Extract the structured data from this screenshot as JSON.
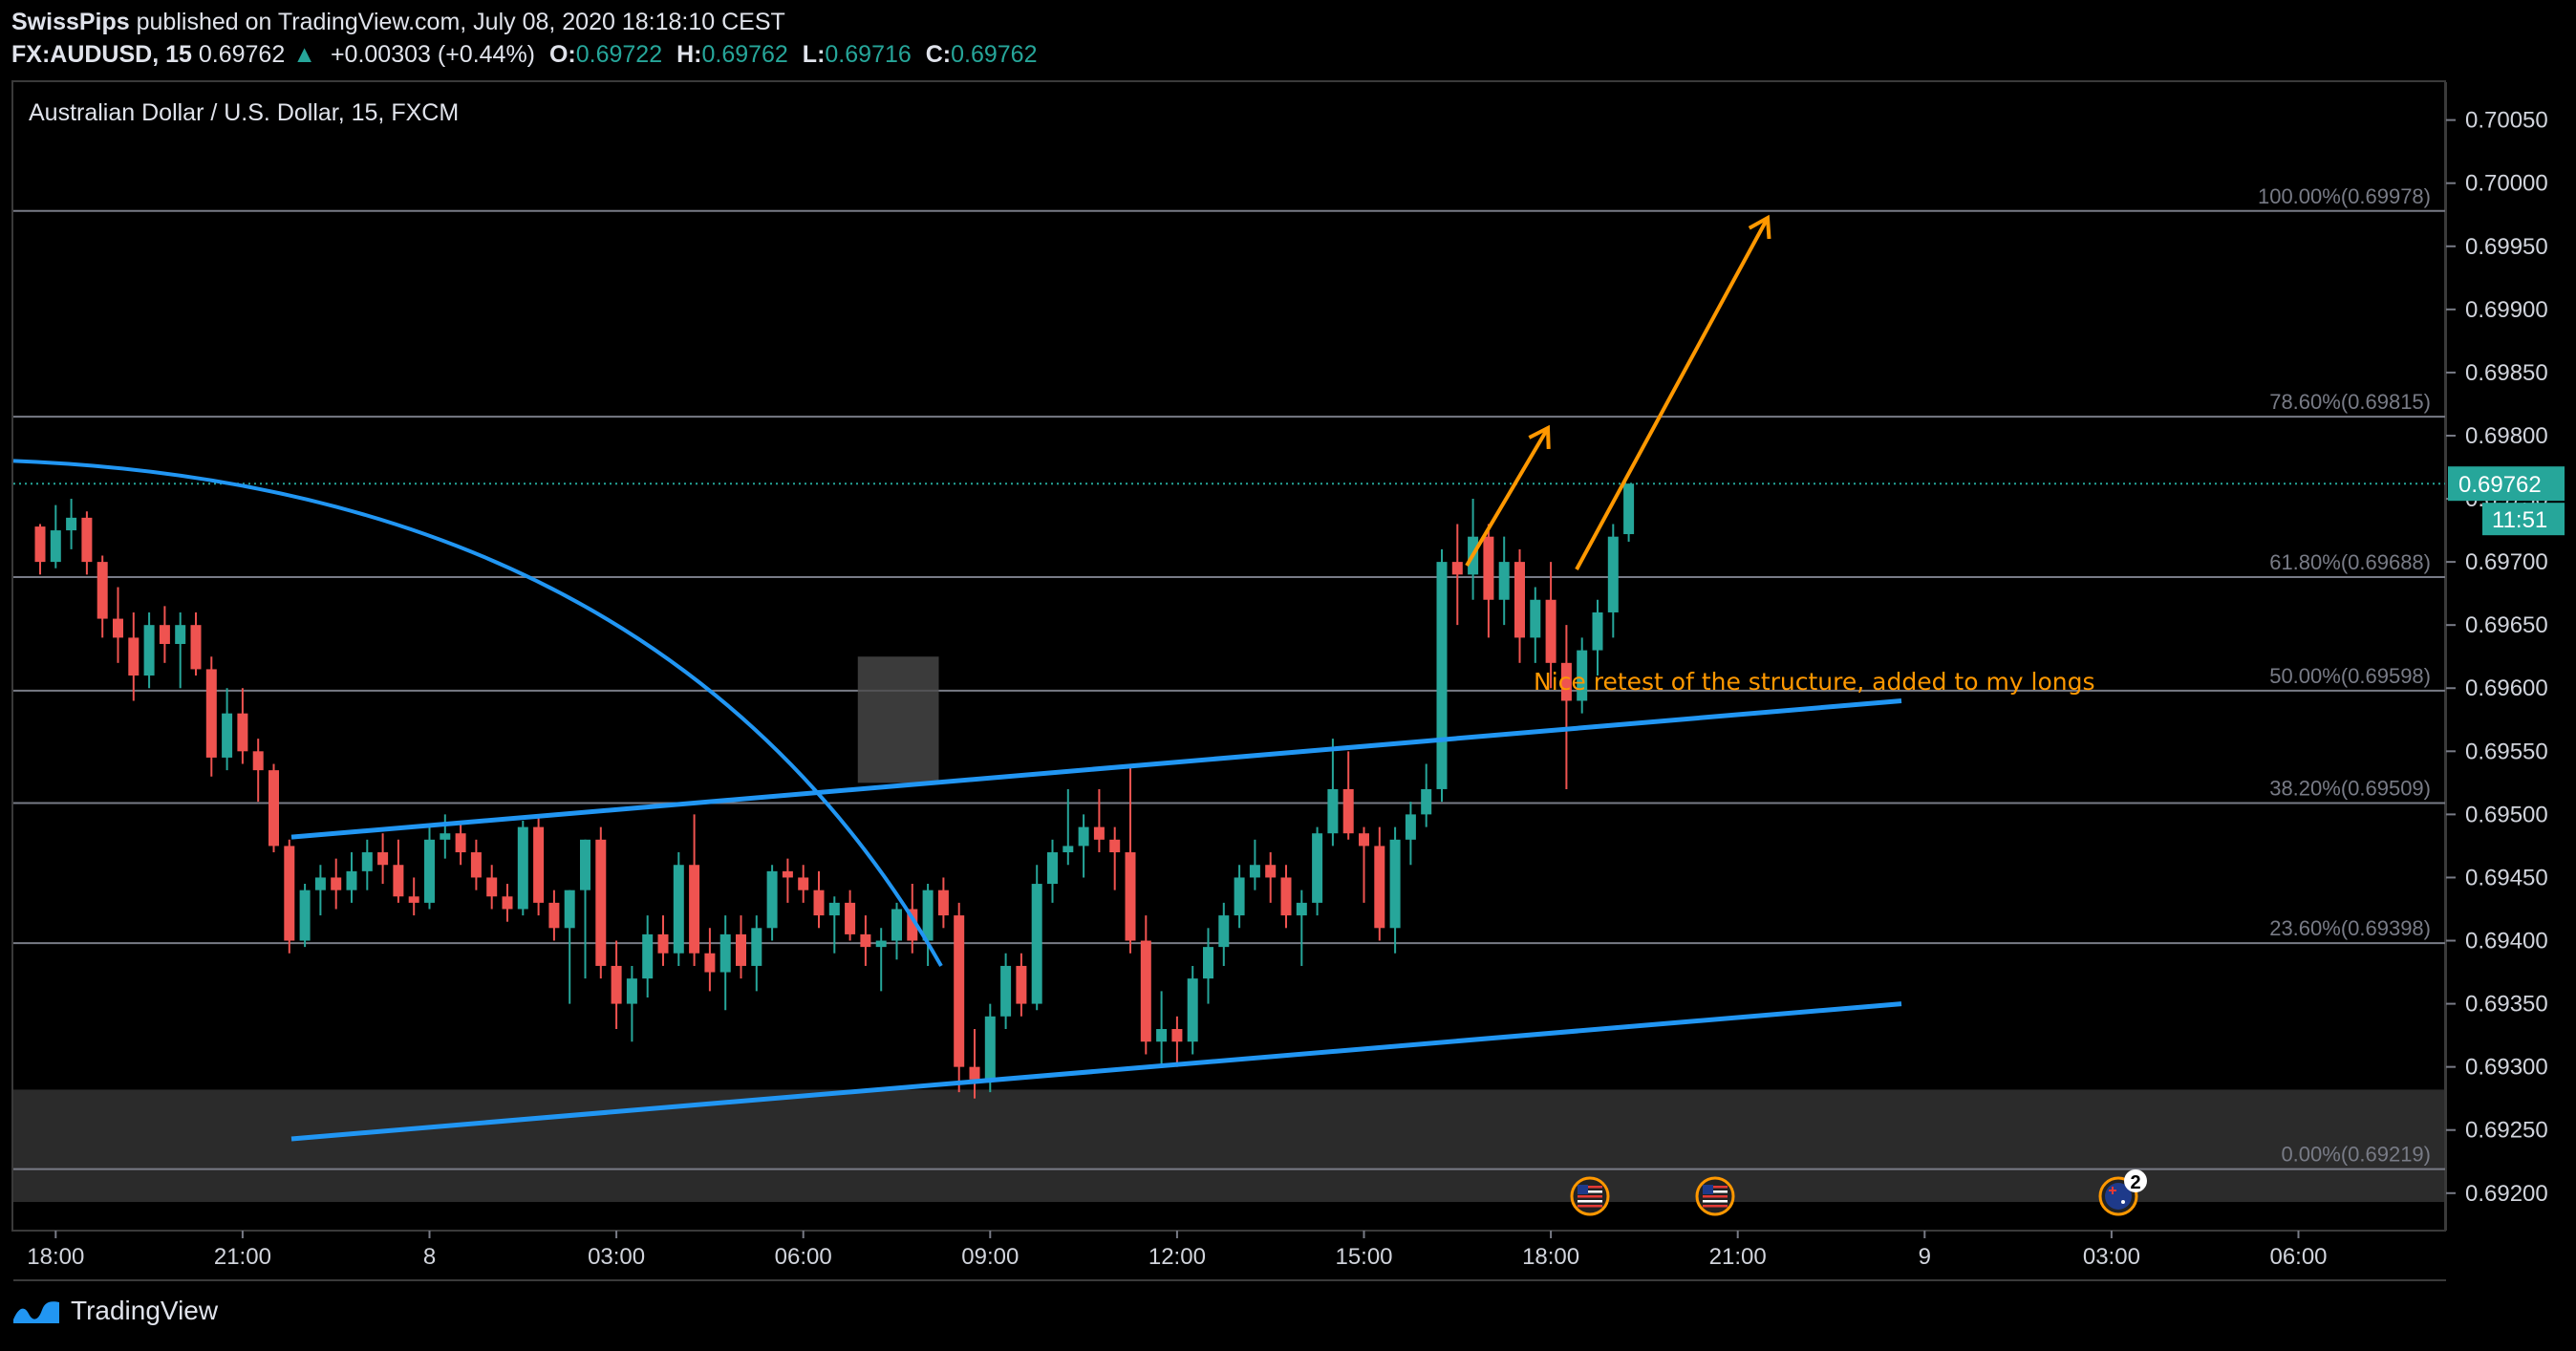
{
  "header": {
    "author": "SwissPips",
    "published": "published on TradingView.com, July 08, 2020 18:18:10 CEST",
    "symbol": "FX:AUDUSD, 15",
    "price": "0.69762",
    "change": "+0.00303 (+0.44%)",
    "o_label": "O:",
    "o_val": "0.69722",
    "h_label": "H:",
    "h_val": "0.69762",
    "l_label": "L:",
    "l_val": "0.69716",
    "c_label": "C:",
    "c_val": "0.69762"
  },
  "chart_title": "Australian Dollar / U.S. Dollar, 15, FXCM",
  "annotation": "Nice retest of the structure, added to my longs",
  "footer": {
    "brand": "TradingView"
  },
  "colors": {
    "up": "#26a69a",
    "down": "#ef5350",
    "trend": "#2196f3",
    "arrow": "#ff9800",
    "fib": "#787b86",
    "zone": "#3a3a3a",
    "last": "#26a69a"
  },
  "chart_data": {
    "type": "candlestick",
    "symbol": "AUDUSD",
    "interval": "15",
    "ylim": [
      0.6919,
      0.7008
    ],
    "y_ticks": [
      "0.70050",
      "0.70000",
      "0.69950",
      "0.69900",
      "0.69850",
      "0.69800",
      "0.69750",
      "0.69700",
      "0.69650",
      "0.69600",
      "0.69550",
      "0.69500",
      "0.69450",
      "0.69400",
      "0.69350",
      "0.69300",
      "0.69250",
      "0.69200"
    ],
    "x_ticks": [
      {
        "label": "18:00",
        "bar": 1
      },
      {
        "label": "21:00",
        "bar": 13
      },
      {
        "label": "8",
        "bar": 25
      },
      {
        "label": "03:00",
        "bar": 37
      },
      {
        "label": "06:00",
        "bar": 49
      },
      {
        "label": "09:00",
        "bar": 61
      },
      {
        "label": "12:00",
        "bar": 73
      },
      {
        "label": "15:00",
        "bar": 85
      },
      {
        "label": "18:00",
        "bar": 97
      },
      {
        "label": "21:00",
        "bar": 109
      },
      {
        "label": "9",
        "bar": 121
      },
      {
        "label": "03:00",
        "bar": 133
      },
      {
        "label": "06:00",
        "bar": 145
      }
    ],
    "fib_levels": [
      {
        "label": "100.00%(0.69978)",
        "price": 0.69978
      },
      {
        "label": "78.60%(0.69815)",
        "price": 0.69815
      },
      {
        "label": "61.80%(0.69688)",
        "price": 0.69688
      },
      {
        "label": "50.00%(0.69598)",
        "price": 0.69598
      },
      {
        "label": "38.20%(0.69509)",
        "price": 0.69509
      },
      {
        "label": "23.60%(0.69398)",
        "price": 0.69398
      },
      {
        "label": "0.00%(0.69219)",
        "price": 0.69219
      }
    ],
    "last_price": "0.69762",
    "countdown": "11:51",
    "candles": [
      [
        0.69728,
        0.6973,
        0.6969,
        0.697
      ],
      [
        0.697,
        0.69745,
        0.69695,
        0.69725
      ],
      [
        0.69725,
        0.6975,
        0.6971,
        0.69735
      ],
      [
        0.69735,
        0.6974,
        0.6969,
        0.697
      ],
      [
        0.697,
        0.69705,
        0.6964,
        0.69655
      ],
      [
        0.69655,
        0.6968,
        0.6962,
        0.6964
      ],
      [
        0.6964,
        0.6966,
        0.6959,
        0.6961
      ],
      [
        0.6961,
        0.6966,
        0.696,
        0.6965
      ],
      [
        0.6965,
        0.69665,
        0.6962,
        0.69635
      ],
      [
        0.69635,
        0.6966,
        0.696,
        0.6965
      ],
      [
        0.6965,
        0.6966,
        0.6961,
        0.69615
      ],
      [
        0.69615,
        0.69625,
        0.6953,
        0.69545
      ],
      [
        0.69545,
        0.696,
        0.69535,
        0.6958
      ],
      [
        0.6958,
        0.696,
        0.6954,
        0.6955
      ],
      [
        0.6955,
        0.6956,
        0.6951,
        0.69535
      ],
      [
        0.69535,
        0.6954,
        0.6947,
        0.69475
      ],
      [
        0.69475,
        0.6948,
        0.6939,
        0.694
      ],
      [
        0.694,
        0.69445,
        0.69395,
        0.6944
      ],
      [
        0.6944,
        0.6946,
        0.6942,
        0.6945
      ],
      [
        0.6945,
        0.69465,
        0.69425,
        0.6944
      ],
      [
        0.6944,
        0.6947,
        0.6943,
        0.69455
      ],
      [
        0.69455,
        0.6948,
        0.6944,
        0.6947
      ],
      [
        0.6947,
        0.69485,
        0.69445,
        0.6946
      ],
      [
        0.6946,
        0.6948,
        0.6943,
        0.69435
      ],
      [
        0.69435,
        0.6945,
        0.6942,
        0.6943
      ],
      [
        0.6943,
        0.6949,
        0.69425,
        0.6948
      ],
      [
        0.6948,
        0.695,
        0.69465,
        0.69485
      ],
      [
        0.69485,
        0.69495,
        0.6946,
        0.6947
      ],
      [
        0.6947,
        0.6948,
        0.6944,
        0.6945
      ],
      [
        0.6945,
        0.6946,
        0.69425,
        0.69435
      ],
      [
        0.69435,
        0.69445,
        0.69415,
        0.69425
      ],
      [
        0.69425,
        0.69495,
        0.6942,
        0.6949
      ],
      [
        0.6949,
        0.695,
        0.6942,
        0.6943
      ],
      [
        0.6943,
        0.6944,
        0.694,
        0.6941
      ],
      [
        0.6941,
        0.6944,
        0.6935,
        0.6944
      ],
      [
        0.6944,
        0.6948,
        0.6937,
        0.6948
      ],
      [
        0.6948,
        0.6949,
        0.6937,
        0.6938
      ],
      [
        0.6938,
        0.694,
        0.6933,
        0.6935
      ],
      [
        0.6935,
        0.6938,
        0.6932,
        0.6937
      ],
      [
        0.6937,
        0.6942,
        0.69355,
        0.69405
      ],
      [
        0.69405,
        0.6942,
        0.6938,
        0.6939
      ],
      [
        0.6939,
        0.6947,
        0.6938,
        0.6946
      ],
      [
        0.6946,
        0.695,
        0.6938,
        0.6939
      ],
      [
        0.6939,
        0.6941,
        0.6936,
        0.69375
      ],
      [
        0.69375,
        0.6942,
        0.69345,
        0.69405
      ],
      [
        0.69405,
        0.6942,
        0.6937,
        0.6938
      ],
      [
        0.6938,
        0.6942,
        0.6936,
        0.6941
      ],
      [
        0.6941,
        0.6946,
        0.694,
        0.69455
      ],
      [
        0.69455,
        0.69465,
        0.6943,
        0.6945
      ],
      [
        0.6945,
        0.6946,
        0.6943,
        0.6944
      ],
      [
        0.6944,
        0.69455,
        0.6941,
        0.6942
      ],
      [
        0.6942,
        0.69435,
        0.6939,
        0.6943
      ],
      [
        0.6943,
        0.6944,
        0.694,
        0.69405
      ],
      [
        0.69405,
        0.6942,
        0.6938,
        0.69395
      ],
      [
        0.69395,
        0.6941,
        0.6936,
        0.694
      ],
      [
        0.694,
        0.6943,
        0.69385,
        0.69425
      ],
      [
        0.69425,
        0.69445,
        0.6939,
        0.694
      ],
      [
        0.694,
        0.69445,
        0.6938,
        0.6944
      ],
      [
        0.6944,
        0.6945,
        0.6941,
        0.6942
      ],
      [
        0.6942,
        0.6943,
        0.6928,
        0.693
      ],
      [
        0.693,
        0.6933,
        0.69275,
        0.6929
      ],
      [
        0.6929,
        0.6935,
        0.6928,
        0.6934
      ],
      [
        0.6934,
        0.6939,
        0.6933,
        0.6938
      ],
      [
        0.6938,
        0.6939,
        0.6934,
        0.6935
      ],
      [
        0.6935,
        0.6946,
        0.69345,
        0.69445
      ],
      [
        0.69445,
        0.6948,
        0.6943,
        0.6947
      ],
      [
        0.6947,
        0.6952,
        0.6946,
        0.69475
      ],
      [
        0.69475,
        0.695,
        0.6945,
        0.6949
      ],
      [
        0.6949,
        0.6952,
        0.6947,
        0.6948
      ],
      [
        0.6948,
        0.6949,
        0.6944,
        0.6947
      ],
      [
        0.6947,
        0.6954,
        0.6939,
        0.694
      ],
      [
        0.694,
        0.6942,
        0.6931,
        0.6932
      ],
      [
        0.6932,
        0.6936,
        0.693,
        0.6933
      ],
      [
        0.6933,
        0.6934,
        0.693,
        0.6932
      ],
      [
        0.6932,
        0.6938,
        0.6931,
        0.6937
      ],
      [
        0.6937,
        0.6941,
        0.6935,
        0.69395
      ],
      [
        0.69395,
        0.6943,
        0.6938,
        0.6942
      ],
      [
        0.6942,
        0.6946,
        0.6941,
        0.6945
      ],
      [
        0.6945,
        0.6948,
        0.6944,
        0.6946
      ],
      [
        0.6946,
        0.6947,
        0.6943,
        0.6945
      ],
      [
        0.6945,
        0.6946,
        0.6941,
        0.6942
      ],
      [
        0.6942,
        0.6944,
        0.6938,
        0.6943
      ],
      [
        0.6943,
        0.6949,
        0.6942,
        0.69485
      ],
      [
        0.69485,
        0.6956,
        0.69475,
        0.6952
      ],
      [
        0.6952,
        0.6955,
        0.6948,
        0.69485
      ],
      [
        0.69485,
        0.6949,
        0.6943,
        0.69475
      ],
      [
        0.69475,
        0.6949,
        0.694,
        0.6941
      ],
      [
        0.6941,
        0.6949,
        0.6939,
        0.6948
      ],
      [
        0.6948,
        0.6951,
        0.6946,
        0.695
      ],
      [
        0.695,
        0.6954,
        0.6949,
        0.6952
      ],
      [
        0.6952,
        0.6971,
        0.6951,
        0.697
      ],
      [
        0.697,
        0.6973,
        0.6965,
        0.6969
      ],
      [
        0.6969,
        0.6975,
        0.6967,
        0.6972
      ],
      [
        0.6972,
        0.6973,
        0.6964,
        0.6967
      ],
      [
        0.6967,
        0.6972,
        0.6965,
        0.697
      ],
      [
        0.697,
        0.6971,
        0.6962,
        0.6964
      ],
      [
        0.6964,
        0.6968,
        0.6962,
        0.6967
      ],
      [
        0.6967,
        0.697,
        0.696,
        0.6962
      ],
      [
        0.6962,
        0.6965,
        0.6952,
        0.6959
      ],
      [
        0.6959,
        0.6964,
        0.6958,
        0.6963
      ],
      [
        0.6963,
        0.6967,
        0.6961,
        0.6966
      ],
      [
        0.6966,
        0.6973,
        0.6964,
        0.6972
      ],
      [
        0.69722,
        0.69762,
        0.69716,
        0.69762
      ]
    ]
  }
}
